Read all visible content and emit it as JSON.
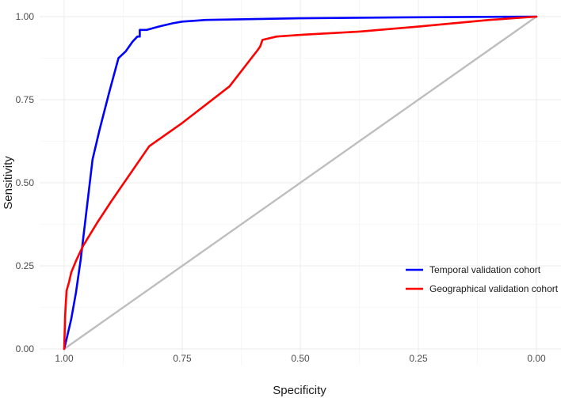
{
  "chart_data": {
    "type": "line",
    "xlabel": "Specificity",
    "ylabel": "Sensitivity",
    "x_reversed": true,
    "xlim": [
      1.0,
      0.0
    ],
    "ylim": [
      0.0,
      1.0
    ],
    "x_ticks": [
      "1.00",
      "0.75",
      "0.50",
      "0.25",
      "0.00"
    ],
    "y_ticks": [
      "0.00",
      "0.25",
      "0.50",
      "0.75",
      "1.00"
    ],
    "grid": true,
    "legend_position": "bottom-right",
    "reference_line": {
      "x": [
        1.0,
        0.0
      ],
      "y": [
        0.0,
        1.0
      ],
      "color": "#bebebe"
    },
    "series": [
      {
        "name": "Temporal validation cohort",
        "color": "#0000ff",
        "x": [
          1.0,
          0.995,
          0.985,
          0.975,
          0.965,
          0.94,
          0.925,
          0.905,
          0.885,
          0.87,
          0.865,
          0.855,
          0.845,
          0.84,
          0.84,
          0.825,
          0.8,
          0.77,
          0.75,
          0.7,
          0.5,
          0.25,
          0.0
        ],
        "y": [
          0.0,
          0.03,
          0.09,
          0.17,
          0.27,
          0.57,
          0.66,
          0.77,
          0.875,
          0.895,
          0.905,
          0.925,
          0.94,
          0.94,
          0.96,
          0.96,
          0.97,
          0.98,
          0.985,
          0.99,
          0.995,
          0.998,
          1.0
        ]
      },
      {
        "name": "Geographical validation cohort",
        "color": "#ff0000",
        "x": [
          1.0,
          0.998,
          0.995,
          0.99,
          0.985,
          0.975,
          0.96,
          0.93,
          0.9,
          0.82,
          0.75,
          0.65,
          0.59,
          0.585,
          0.58,
          0.55,
          0.5,
          0.375,
          0.25,
          0.1,
          0.0
        ],
        "y": [
          0.0,
          0.1,
          0.175,
          0.2,
          0.23,
          0.265,
          0.31,
          0.38,
          0.445,
          0.61,
          0.68,
          0.79,
          0.9,
          0.91,
          0.93,
          0.94,
          0.945,
          0.955,
          0.97,
          0.99,
          1.0
        ]
      }
    ]
  }
}
